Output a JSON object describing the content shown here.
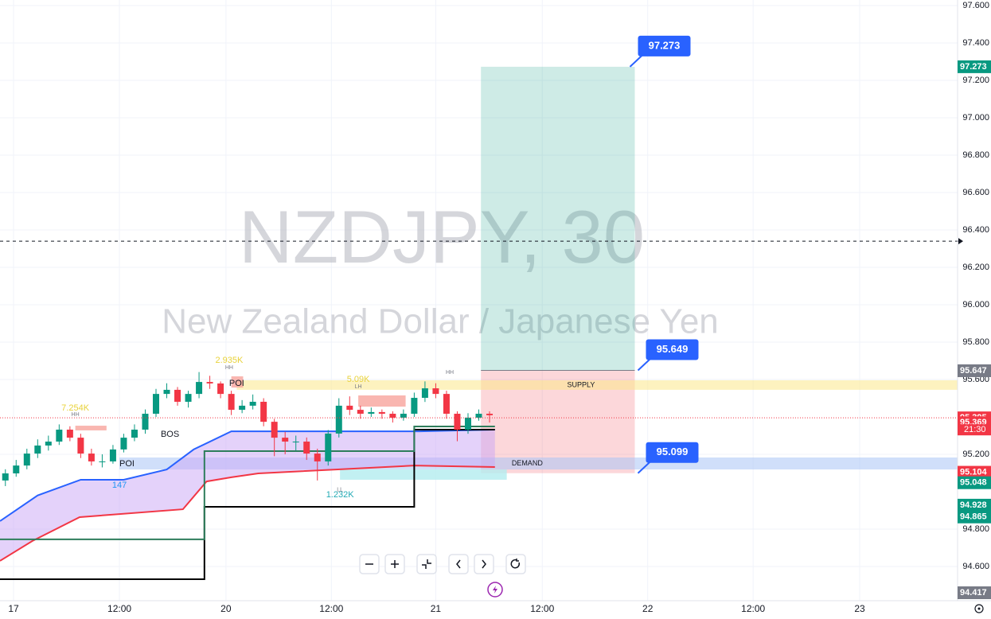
{
  "chart_data": {
    "type": "candlestick",
    "watermark": {
      "symbol": "NZDJPY, 30",
      "description": "New Zealand Dollar / Japanese Yen"
    },
    "xlim": [
      -0.5,
      88.5
    ],
    "ylim": [
      94.417,
      97.63
    ],
    "xticks": [
      {
        "value": 0.76,
        "label": "17"
      },
      {
        "value": 10.6,
        "label": "12:00"
      },
      {
        "value": 20.5,
        "label": "20"
      },
      {
        "value": 30.3,
        "label": "12:00"
      },
      {
        "value": 40.0,
        "label": "21"
      },
      {
        "value": 49.9,
        "label": "12:00"
      },
      {
        "value": 59.7,
        "label": "22"
      },
      {
        "value": 69.5,
        "label": "12:00"
      },
      {
        "value": 79.4,
        "label": "23"
      }
    ],
    "yticks": [
      {
        "value": 97.6,
        "label": "97.600"
      },
      {
        "value": 97.4,
        "label": "97.400"
      },
      {
        "value": 97.2,
        "label": "97.200"
      },
      {
        "value": 97.0,
        "label": "97.000"
      },
      {
        "value": 96.8,
        "label": "96.800"
      },
      {
        "value": 96.6,
        "label": "96.600"
      },
      {
        "value": 96.4,
        "label": "96.400"
      },
      {
        "value": 96.2,
        "label": "96.200"
      },
      {
        "value": 96.0,
        "label": "96.000"
      },
      {
        "value": 95.8,
        "label": "95.800"
      },
      {
        "value": 95.6,
        "label": "95.600"
      },
      {
        "value": 95.2,
        "label": "95.200"
      },
      {
        "value": 94.8,
        "label": "94.800"
      },
      {
        "value": 94.6,
        "label": "94.600"
      }
    ],
    "grid": true,
    "up_color": "#089981",
    "down_color": "#f23645",
    "candles": [
      [
        95.06,
        95.12,
        95.03,
        95.098
      ],
      [
        95.098,
        95.17,
        95.08,
        95.14
      ],
      [
        95.14,
        95.23,
        95.12,
        95.204
      ],
      [
        95.204,
        95.28,
        95.18,
        95.247
      ],
      [
        95.247,
        95.3,
        95.22,
        95.268
      ],
      [
        95.268,
        95.36,
        95.25,
        95.332
      ],
      [
        95.332,
        95.35,
        95.27,
        95.289
      ],
      [
        95.289,
        95.31,
        95.18,
        95.204
      ],
      [
        95.204,
        95.23,
        95.14,
        95.162
      ],
      [
        95.162,
        95.2,
        95.13,
        95.162
      ],
      [
        95.162,
        95.25,
        95.15,
        95.226
      ],
      [
        95.226,
        95.31,
        95.21,
        95.289
      ],
      [
        95.289,
        95.36,
        95.27,
        95.332
      ],
      [
        95.332,
        95.44,
        95.31,
        95.417
      ],
      [
        95.417,
        95.55,
        95.4,
        95.523
      ],
      [
        95.523,
        95.58,
        95.5,
        95.545
      ],
      [
        95.545,
        95.56,
        95.46,
        95.481
      ],
      [
        95.481,
        95.54,
        95.45,
        95.523
      ],
      [
        95.523,
        95.64,
        95.5,
        95.587
      ],
      [
        95.587,
        95.62,
        95.55,
        95.579
      ],
      [
        95.579,
        95.59,
        95.5,
        95.523
      ],
      [
        95.523,
        95.54,
        95.41,
        95.438
      ],
      [
        95.438,
        95.49,
        95.42,
        95.46
      ],
      [
        95.46,
        95.52,
        95.44,
        95.481
      ],
      [
        95.481,
        95.5,
        95.35,
        95.374
      ],
      [
        95.374,
        95.39,
        95.19,
        95.289
      ],
      [
        95.289,
        95.32,
        95.2,
        95.268
      ],
      [
        95.268,
        95.3,
        95.22,
        95.268
      ],
      [
        95.268,
        95.29,
        95.17,
        95.204
      ],
      [
        95.204,
        95.23,
        95.06,
        95.162
      ],
      [
        95.162,
        95.33,
        95.14,
        95.311
      ],
      [
        95.311,
        95.5,
        95.29,
        95.46
      ],
      [
        95.46,
        95.51,
        95.41,
        95.438
      ],
      [
        95.438,
        95.46,
        95.39,
        95.417
      ],
      [
        95.417,
        95.45,
        95.4,
        95.426
      ],
      [
        95.426,
        95.44,
        95.39,
        95.417
      ],
      [
        95.417,
        95.43,
        95.37,
        95.396
      ],
      [
        95.396,
        95.44,
        95.38,
        95.417
      ],
      [
        95.417,
        95.53,
        95.4,
        95.502
      ],
      [
        95.502,
        95.59,
        95.48,
        95.553
      ],
      [
        95.553,
        95.58,
        95.5,
        95.523
      ],
      [
        95.523,
        95.54,
        95.39,
        95.417
      ],
      [
        95.417,
        95.43,
        95.27,
        95.332
      ],
      [
        95.332,
        95.42,
        95.31,
        95.396
      ],
      [
        95.396,
        95.44,
        95.38,
        95.417
      ],
      [
        95.417,
        95.43,
        95.37,
        95.409
      ]
    ],
    "series": [
      {
        "color": "#2962ff",
        "x": [
          -0.5,
          3,
          7,
          11,
          15,
          17.5,
          21,
          38.5,
          45.5
        ],
        "values": [
          94.843,
          94.98,
          95.064,
          95.064,
          95.119,
          95.226,
          95.323,
          95.323,
          95.332
        ]
      },
      {
        "color": "#f23645",
        "x": [
          -0.5,
          2.5,
          6.9,
          16.5,
          18.7,
          21,
          23.5,
          30.9,
          38,
          45.5
        ],
        "values": [
          94.63,
          94.736,
          94.864,
          94.906,
          95.055,
          95.077,
          95.098,
          95.119,
          95.14,
          95.132
        ]
      },
      {
        "color": "#000000",
        "x": [
          -0.5,
          18.5,
          18.5,
          38,
          38,
          45.5
        ],
        "values": [
          94.532,
          94.532,
          94.919,
          94.919,
          95.332,
          95.332
        ]
      },
      {
        "color": "#2e7d5b",
        "x": [
          -0.5,
          18.5,
          18.5,
          38,
          38,
          45.5
        ],
        "values": [
          94.745,
          94.745,
          95.217,
          95.217,
          95.349,
          95.349
        ]
      }
    ],
    "cloud_color": "#c9a6f5",
    "zones": [
      {
        "name": "SUPPLY",
        "from": 95.545,
        "to": 95.596,
        "start": 21.5,
        "color": "#fbe88a",
        "label_x": 53.5
      },
      {
        "name": "DEMAND",
        "from": 95.119,
        "to": 95.183,
        "start": 10.6,
        "color": "#a9c4f5",
        "label_x": 48.5
      }
    ],
    "boxes": [
      {
        "x": [
          6.5,
          9.4
        ],
        "price": [
          95.328,
          95.353
        ],
        "color": "#f7a49c"
      },
      {
        "x": [
          21,
          22.1
        ],
        "price": [
          95.557,
          95.617
        ],
        "color": "#f7a49c"
      },
      {
        "x": [
          32.8,
          37.2
        ],
        "price": [
          95.455,
          95.515
        ],
        "color": "#f7a49c"
      },
      {
        "x": [
          31.1,
          46.6
        ],
        "price": [
          95.064,
          95.119
        ],
        "color": "#b3ecef"
      }
    ],
    "annotations": [
      {
        "text": "7.254K",
        "x": 6.5,
        "y": 95.447,
        "color": "#e8d23a"
      },
      {
        "text": "HH",
        "x": 6.5,
        "y": 95.413,
        "color": "#787b86"
      },
      {
        "text": "BOS",
        "x": 15.3,
        "y": 95.306,
        "color": "#131722"
      },
      {
        "text": "POI",
        "x": 11.3,
        "y": 95.149,
        "color": "#131722"
      },
      {
        "text": "147",
        "x": 10.6,
        "y": 95.034,
        "color": "#2196f3"
      },
      {
        "text": "2.935K",
        "x": 20.8,
        "y": 95.702,
        "color": "#e8d23a"
      },
      {
        "text": "HH",
        "x": 20.8,
        "y": 95.664,
        "color": "#787b86"
      },
      {
        "text": "POI",
        "x": 21.5,
        "y": 95.579,
        "color": "#131722"
      },
      {
        "text": "5.09K",
        "x": 32.8,
        "y": 95.6,
        "color": "#e8d23a"
      },
      {
        "text": "LH",
        "x": 32.8,
        "y": 95.562,
        "color": "#787b86"
      },
      {
        "text": "HH",
        "x": 41.3,
        "y": 95.638,
        "color": "#787b86"
      },
      {
        "text": "LL",
        "x": 31.1,
        "y": 95.009,
        "color": "#787b86"
      },
      {
        "text": "1.232K",
        "x": 31.1,
        "y": 94.983,
        "color": "#22aab5"
      }
    ],
    "position": {
      "start": 44.2,
      "end": 58.5,
      "target": 97.273,
      "entry": 95.649,
      "stop": 95.099
    },
    "crosshair": 96.34,
    "price_labels": [
      {
        "value": 97.273,
        "color": "#089981"
      },
      {
        "value": 95.647,
        "color": "#787b86"
      },
      {
        "value": 95.395,
        "color": "#f23645"
      },
      {
        "value": 95.369,
        "color": "#f23645"
      },
      {
        "value": 95.104,
        "color": "#f23645"
      },
      {
        "value": 95.048,
        "color": "#089981"
      },
      {
        "value": 94.928,
        "color": "#089981"
      },
      {
        "value": 94.865,
        "color": "#089981"
      },
      {
        "value": 94.417,
        "color": "#787b86"
      }
    ],
    "countdown": "21:30"
  }
}
